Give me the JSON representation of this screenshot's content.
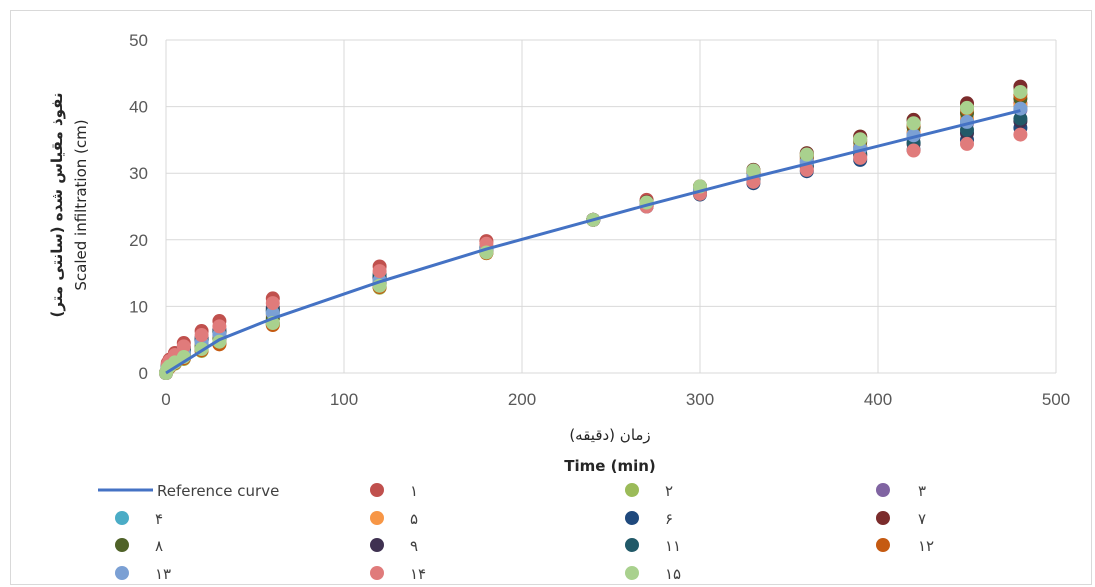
{
  "chart_data": {
    "type": "scatter",
    "xlabel_fa": "زمان (دقیقه)",
    "xlabel_en": "Time (min)",
    "ylabel_fa": "نفوذ مقیاس شده (سانتی متر)",
    "ylabel_en": "Scaled infiltration (cm)",
    "xlim": [
      0,
      500
    ],
    "ylim": [
      0,
      50
    ],
    "x_ticks": [
      "0",
      "100",
      "200",
      "300",
      "400",
      "500"
    ],
    "y_ticks": [
      "0",
      "10",
      "20",
      "30",
      "40",
      "50"
    ],
    "grid": true,
    "legend_position": "bottom",
    "reference_curve": {
      "name": "Reference curve",
      "color": "#4472C4",
      "x": [
        0,
        30,
        60,
        120,
        180,
        240,
        270,
        300,
        330,
        360,
        390,
        420,
        450,
        480
      ],
      "y": [
        0,
        5.0,
        8.2,
        13.7,
        18.6,
        23.0,
        25.2,
        27.3,
        29.4,
        31.4,
        33.4,
        35.4,
        37.4,
        39.4
      ]
    },
    "x": [
      0,
      1,
      2,
      5,
      10,
      20,
      30,
      60,
      120,
      180,
      240,
      270,
      300,
      330,
      360,
      390,
      420,
      450,
      480
    ],
    "series": [
      {
        "name": "۱",
        "color": "#C0504D",
        "values": [
          0,
          1.5,
          2.0,
          3.0,
          4.5,
          6.3,
          7.8,
          11.2,
          16.0,
          19.8,
          23.0,
          26.0,
          28.0,
          30.2,
          32.2,
          34.0,
          36.0,
          38.0,
          40.5
        ]
      },
      {
        "name": "۲",
        "color": "#9BBB59",
        "values": [
          0,
          0.6,
          0.9,
          1.4,
          2.1,
          3.3,
          4.4,
          7.3,
          12.8,
          18.0,
          23.0,
          25.6,
          28.0,
          30.5,
          33.0,
          35.5,
          38.0,
          40.2,
          42.5
        ]
      },
      {
        "name": "۳",
        "color": "#8064A2",
        "values": [
          0,
          1.0,
          1.4,
          2.2,
          3.2,
          4.8,
          6.0,
          9.3,
          14.2,
          18.8,
          23.0,
          25.3,
          27.5,
          29.5,
          31.5,
          33.5,
          35.5,
          37.5,
          39.5
        ]
      },
      {
        "name": "۴",
        "color": "#4BACC6",
        "values": [
          0,
          0.9,
          1.3,
          2.0,
          3.0,
          4.5,
          5.7,
          8.9,
          13.8,
          18.6,
          23.0,
          25.4,
          27.6,
          29.8,
          31.8,
          33.9,
          35.8,
          37.8,
          40.0
        ]
      },
      {
        "name": "۵",
        "color": "#F79646",
        "values": [
          0,
          0.8,
          1.2,
          1.9,
          2.9,
          4.3,
          5.5,
          8.6,
          13.6,
          18.5,
          23.0,
          25.4,
          27.7,
          29.9,
          32.0,
          34.0,
          36.2,
          38.2,
          40.2
        ]
      },
      {
        "name": "۶",
        "color": "#1F497D",
        "values": [
          0,
          1.2,
          1.7,
          2.5,
          3.8,
          5.3,
          6.5,
          9.8,
          14.5,
          18.8,
          23.0,
          25.0,
          26.8,
          28.5,
          30.3,
          32.0,
          33.5,
          35.0,
          36.8
        ]
      },
      {
        "name": "۷",
        "color": "#7B2C2C",
        "values": [
          0,
          0.7,
          1.0,
          1.6,
          2.4,
          3.6,
          4.6,
          7.5,
          13.0,
          18.1,
          23.0,
          25.7,
          28.0,
          30.5,
          33.0,
          35.5,
          38.0,
          40.5,
          43.0
        ]
      },
      {
        "name": "۸",
        "color": "#4F6228",
        "values": [
          0,
          0.8,
          1.1,
          1.8,
          2.6,
          4.0,
          5.1,
          8.2,
          13.3,
          18.3,
          23.0,
          25.6,
          27.9,
          30.2,
          32.5,
          34.7,
          36.9,
          39.0,
          41.2
        ]
      },
      {
        "name": "۹",
        "color": "#3F3151",
        "values": [
          0,
          1.1,
          1.6,
          2.4,
          3.5,
          5.0,
          6.2,
          9.5,
          14.3,
          18.7,
          23.0,
          25.1,
          27.2,
          29.0,
          30.9,
          32.7,
          34.4,
          36.0,
          37.8
        ]
      },
      {
        "name": "۱۱",
        "color": "#215968",
        "values": [
          0,
          1.0,
          1.5,
          2.3,
          3.4,
          4.9,
          6.1,
          9.3,
          14.8,
          18.9,
          23.0,
          25.2,
          27.3,
          29.2,
          31.1,
          32.9,
          34.6,
          36.5,
          38.2
        ]
      },
      {
        "name": "۱۲",
        "color": "#C55A11",
        "values": [
          0,
          0.6,
          0.9,
          1.5,
          2.2,
          3.4,
          4.3,
          7.2,
          12.9,
          18.0,
          23.0,
          25.5,
          27.9,
          30.3,
          32.7,
          35.0,
          37.3,
          39.6,
          41.8
        ]
      },
      {
        "name": "۱۳",
        "color": "#7BA0D4",
        "values": [
          0,
          0.9,
          1.3,
          2.0,
          3.0,
          4.6,
          5.8,
          9.0,
          13.9,
          18.6,
          23.0,
          25.4,
          27.5,
          29.6,
          31.7,
          33.7,
          35.7,
          37.7,
          39.7
        ]
      },
      {
        "name": "۱۴",
        "color": "#E07B7B",
        "values": [
          0,
          1.3,
          1.8,
          2.7,
          4.0,
          5.7,
          7.0,
          10.5,
          15.3,
          19.4,
          23.0,
          25.0,
          26.9,
          28.7,
          30.5,
          32.3,
          33.4,
          34.4,
          35.8
        ]
      },
      {
        "name": "۱۵",
        "color": "#A9D18E",
        "values": [
          0,
          0.7,
          1.0,
          1.6,
          2.4,
          3.6,
          4.7,
          7.5,
          13.1,
          18.1,
          23.0,
          25.6,
          28.0,
          30.4,
          32.8,
          35.1,
          37.5,
          39.8,
          42.2
        ]
      }
    ]
  }
}
